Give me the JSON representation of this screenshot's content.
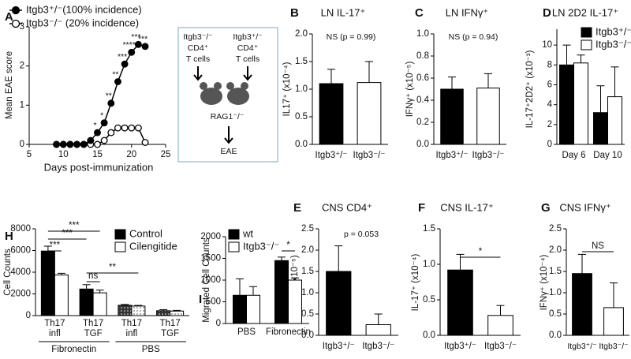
{
  "chart_data": [
    {
      "type": "line",
      "panel": "A",
      "y_label": "Mean EAE score",
      "x_label": "Days post-immunization",
      "x": [
        9,
        10,
        11,
        12,
        13,
        14,
        15,
        16,
        17,
        18,
        19,
        20,
        21,
        22
      ],
      "xlim": [
        5,
        25
      ],
      "xticks": [
        5,
        10,
        15,
        20,
        25
      ],
      "ylim": [
        0,
        3
      ],
      "yticks": [
        0,
        1,
        2,
        3
      ],
      "series": [
        {
          "name": "Itgb3⁺/⁻(100% incidence)",
          "color": "#000000",
          "fill": "#000000",
          "values": [
            0,
            0,
            0,
            0,
            0,
            0.1,
            0.3,
            0.55,
            1.05,
            1.6,
            2.05,
            2.35,
            2.55,
            2.5
          ],
          "significance": [
            null,
            null,
            null,
            null,
            null,
            null,
            "*",
            "*",
            "**",
            "**",
            "***",
            "****",
            "***",
            "***"
          ]
        },
        {
          "name": "Itgb3⁻/⁻ (20% incidence)",
          "color": "#000000",
          "fill": "#ffffff",
          "values": [
            0,
            0,
            0,
            0,
            0,
            0,
            0,
            0.1,
            0.3,
            0.42,
            0.42,
            0.42,
            0.42,
            0.05
          ]
        }
      ]
    },
    {
      "type": "bar",
      "panel": "B",
      "title": "LN  IL-17⁺",
      "y_label": "IL17⁺ (x10⁻⁴)",
      "categories": [
        "Itgb3⁺/⁻",
        "Itgb3⁻/⁻"
      ],
      "values": [
        1.1,
        1.12
      ],
      "errors": [
        0.26,
        0.38
      ],
      "colors": [
        "#000000",
        "#ffffff"
      ],
      "ylim": [
        0,
        2
      ],
      "yticks": [
        {
          "value": 0,
          "label": "0.0"
        },
        0.5,
        {
          "value": 1,
          "label": "1.0"
        },
        1.5,
        {
          "value": 2,
          "label": "2.0"
        }
      ],
      "annotation": "NS (p = 0.99)"
    },
    {
      "type": "bar",
      "panel": "C",
      "title": "LN  IFNγ⁺",
      "y_label": "IFNγ⁺ (x10⁻⁵)",
      "categories": [
        "Itgb3⁺/⁻",
        "Itgb3⁻/⁻"
      ],
      "values": [
        0.5,
        0.51
      ],
      "errors": [
        0.11,
        0.13
      ],
      "colors": [
        "#000000",
        "#ffffff"
      ],
      "ylim": [
        0,
        1
      ],
      "yticks": [
        {
          "value": 0,
          "label": "0.0"
        },
        0.2,
        0.4,
        0.6,
        0.8,
        {
          "value": 1,
          "label": "1.0"
        }
      ],
      "annotation": "NS (p = 0.94)"
    },
    {
      "type": "grouped_bar",
      "panel": "D",
      "title": "LN 2D2 IL-17⁺",
      "y_label": "IL-17⁺2D2⁺ (x10⁻³)",
      "categories": [
        [
          "Day 6"
        ],
        [
          "Day 10"
        ]
      ],
      "series": [
        {
          "name": "Itgb3⁺/⁻",
          "color": "#000000",
          "values": [
            8,
            3.2
          ],
          "errors": [
            2,
            2.7
          ]
        },
        {
          "name": "Itgb3⁻/⁻",
          "color": "#ffffff",
          "values": [
            8.2,
            4.8
          ],
          "errors": [
            0.8,
            3
          ]
        }
      ],
      "ylim": [
        0,
        11.6
      ],
      "yticks": [
        0,
        2,
        4,
        6,
        8,
        10
      ]
    },
    {
      "type": "bar",
      "panel": "E",
      "title": "CNS CD4⁺",
      "y_label": "CD4⁺ (x10⁻⁵)",
      "categories": [
        "Itgb3⁺/⁻",
        "Itgb3⁻/⁻"
      ],
      "values": [
        1.5,
        0.25
      ],
      "errors": [
        0.6,
        0.25
      ],
      "colors": [
        "#000000",
        "#ffffff"
      ],
      "ylim": [
        0,
        2.5
      ],
      "yticks": [
        {
          "value": 0,
          "label": "0.0"
        },
        0.5,
        {
          "value": 1,
          "label": "1.0"
        },
        1.5,
        {
          "value": 2,
          "label": "2.0"
        },
        2.5
      ],
      "annotation": "p = 0.053"
    },
    {
      "type": "bar",
      "panel": "F",
      "title": "CNS  IL-17⁺",
      "y_label": "IL-17⁺ (x10⁻⁴)",
      "categories": [
        "Itgb3⁺/⁻",
        "Itgb3⁻/⁻"
      ],
      "values": [
        0.92,
        0.28
      ],
      "errors": [
        0.22,
        0.14
      ],
      "colors": [
        "#000000",
        "#ffffff"
      ],
      "ylim": [
        0,
        1.5
      ],
      "yticks": [
        {
          "value": 0,
          "label": "0.0"
        },
        0.5,
        {
          "value": 1,
          "label": "1.0"
        },
        1.5
      ],
      "comparisons": [
        {
          "label": "*",
          "bars": [
            0,
            1
          ]
        }
      ]
    },
    {
      "type": "bar",
      "panel": "G",
      "title": "CNS  IFNγ⁺",
      "y_label": "IFNγ⁺ (x10⁻⁴)",
      "categories": [
        "Itgb3⁺/⁻",
        "Itgb3⁻/⁻"
      ],
      "values": [
        1.45,
        0.65
      ],
      "errors": [
        0.45,
        0.58
      ],
      "colors": [
        "#000000",
        "#ffffff"
      ],
      "ylim": [
        0,
        2.5
      ],
      "yticks": [
        {
          "value": 0,
          "label": "0.0"
        },
        0.5,
        {
          "value": 1,
          "label": "1.0"
        },
        1.5,
        {
          "value": 2,
          "label": "2.0"
        },
        2.5
      ],
      "comparisons": [
        {
          "label": "NS",
          "bars": [
            0,
            1
          ]
        }
      ]
    },
    {
      "type": "grouped_bar",
      "panel": "H",
      "y_label": "Cell Counts",
      "categories": [
        [
          "Th17",
          "infl"
        ],
        [
          "Th17",
          "TGF"
        ],
        [
          "Th17",
          "infl"
        ],
        [
          "Th17",
          "TGF"
        ]
      ],
      "patterned": [
        false,
        false,
        true,
        true
      ],
      "group_labels": [
        {
          "label": "Fibronectin",
          "categories": [
            0,
            1
          ]
        },
        {
          "label": "PBS",
          "categories": [
            2,
            3
          ]
        }
      ],
      "series": [
        {
          "name": "Control",
          "color": "#000000",
          "values": [
            5950,
            2450,
            950,
            450
          ],
          "errors": [
            450,
            400,
            80,
            100
          ]
        },
        {
          "name": "Cilengitide",
          "color": "#ffffff",
          "values": [
            3750,
            2100,
            880,
            420
          ],
          "errors": [
            150,
            250,
            60,
            60
          ]
        }
      ],
      "ylim": [
        0,
        8000
      ],
      "yticks": [
        0,
        2000,
        4000,
        6000,
        8000
      ],
      "comparisons": [
        {
          "label": "***",
          "bars": [
            [
              0,
              0
            ],
            [
              1,
              1
            ]
          ]
        },
        {
          "label": "***",
          "bars": [
            [
              0,
              0
            ],
            [
              1,
              0
            ]
          ]
        },
        {
          "label": "***",
          "bars": [
            [
              0,
              0
            ],
            [
              0,
              1
            ]
          ]
        },
        {
          "label": "ns",
          "bars": [
            [
              1,
              0
            ],
            [
              1,
              1
            ]
          ]
        },
        {
          "label": "**",
          "bars": [
            [
              1,
              0
            ],
            [
              2,
              1
            ]
          ]
        }
      ]
    },
    {
      "type": "grouped_bar",
      "panel": "I",
      "y_label": "Migrated Cell Counts",
      "categories": [
        [
          "PBS"
        ],
        [
          "Fibronectin"
        ]
      ],
      "series": [
        {
          "name": "wt",
          "color": "#000000",
          "values": [
            650,
            1450
          ],
          "errors": [
            380,
            80
          ]
        },
        {
          "name": "Itgb3⁻/⁻",
          "color": "#ffffff",
          "values": [
            650,
            1000
          ],
          "errors": [
            200,
            50
          ]
        }
      ],
      "ylim": [
        0,
        2000
      ],
      "yticks": [
        0,
        500,
        1000,
        1500,
        2000
      ],
      "comparisons": [
        {
          "label": "*",
          "bars": [
            [
              1,
              0
            ],
            [
              1,
              1
            ]
          ]
        }
      ]
    }
  ],
  "diagram": {
    "donors": [
      {
        "genotype": "Itgb3⁻/⁻",
        "cells": "CD4⁺",
        "cell_type": "T cells"
      },
      {
        "genotype": "Itgb3⁺/⁻",
        "cells": "CD4⁺",
        "cell_type": "T cells"
      }
    ],
    "recipient": "RAG1⁻/⁻",
    "outcome": "EAE"
  }
}
